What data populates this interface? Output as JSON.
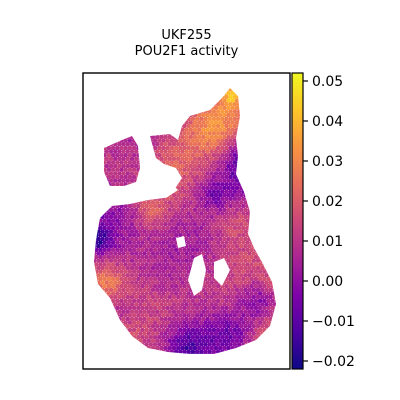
{
  "chart_data": {
    "type": "heatmap",
    "title": [
      "UKF255",
      "POU2F1 activity"
    ],
    "xlabel": "",
    "ylabel": "",
    "axis_ticks": "hidden",
    "grid": false,
    "colorbar": {
      "colormap": "plasma",
      "vmin": -0.022,
      "vmax": 0.052,
      "ticks": [
        -0.02,
        -0.01,
        0.0,
        0.01,
        0.02,
        0.03,
        0.04,
        0.05
      ],
      "tick_labels": [
        "−0.02",
        "−0.01",
        "0.00",
        "0.01",
        "0.02",
        "0.03",
        "0.04",
        "0.05"
      ],
      "placement": "right"
    },
    "colors": {
      "low": "#0d0887",
      "mid": "#cc4778",
      "high": "#f0f921"
    },
    "value_summary": {
      "typical": 0.015,
      "high_region": "upper-right lobe",
      "low_regions": "left edge and bottom center"
    }
  }
}
